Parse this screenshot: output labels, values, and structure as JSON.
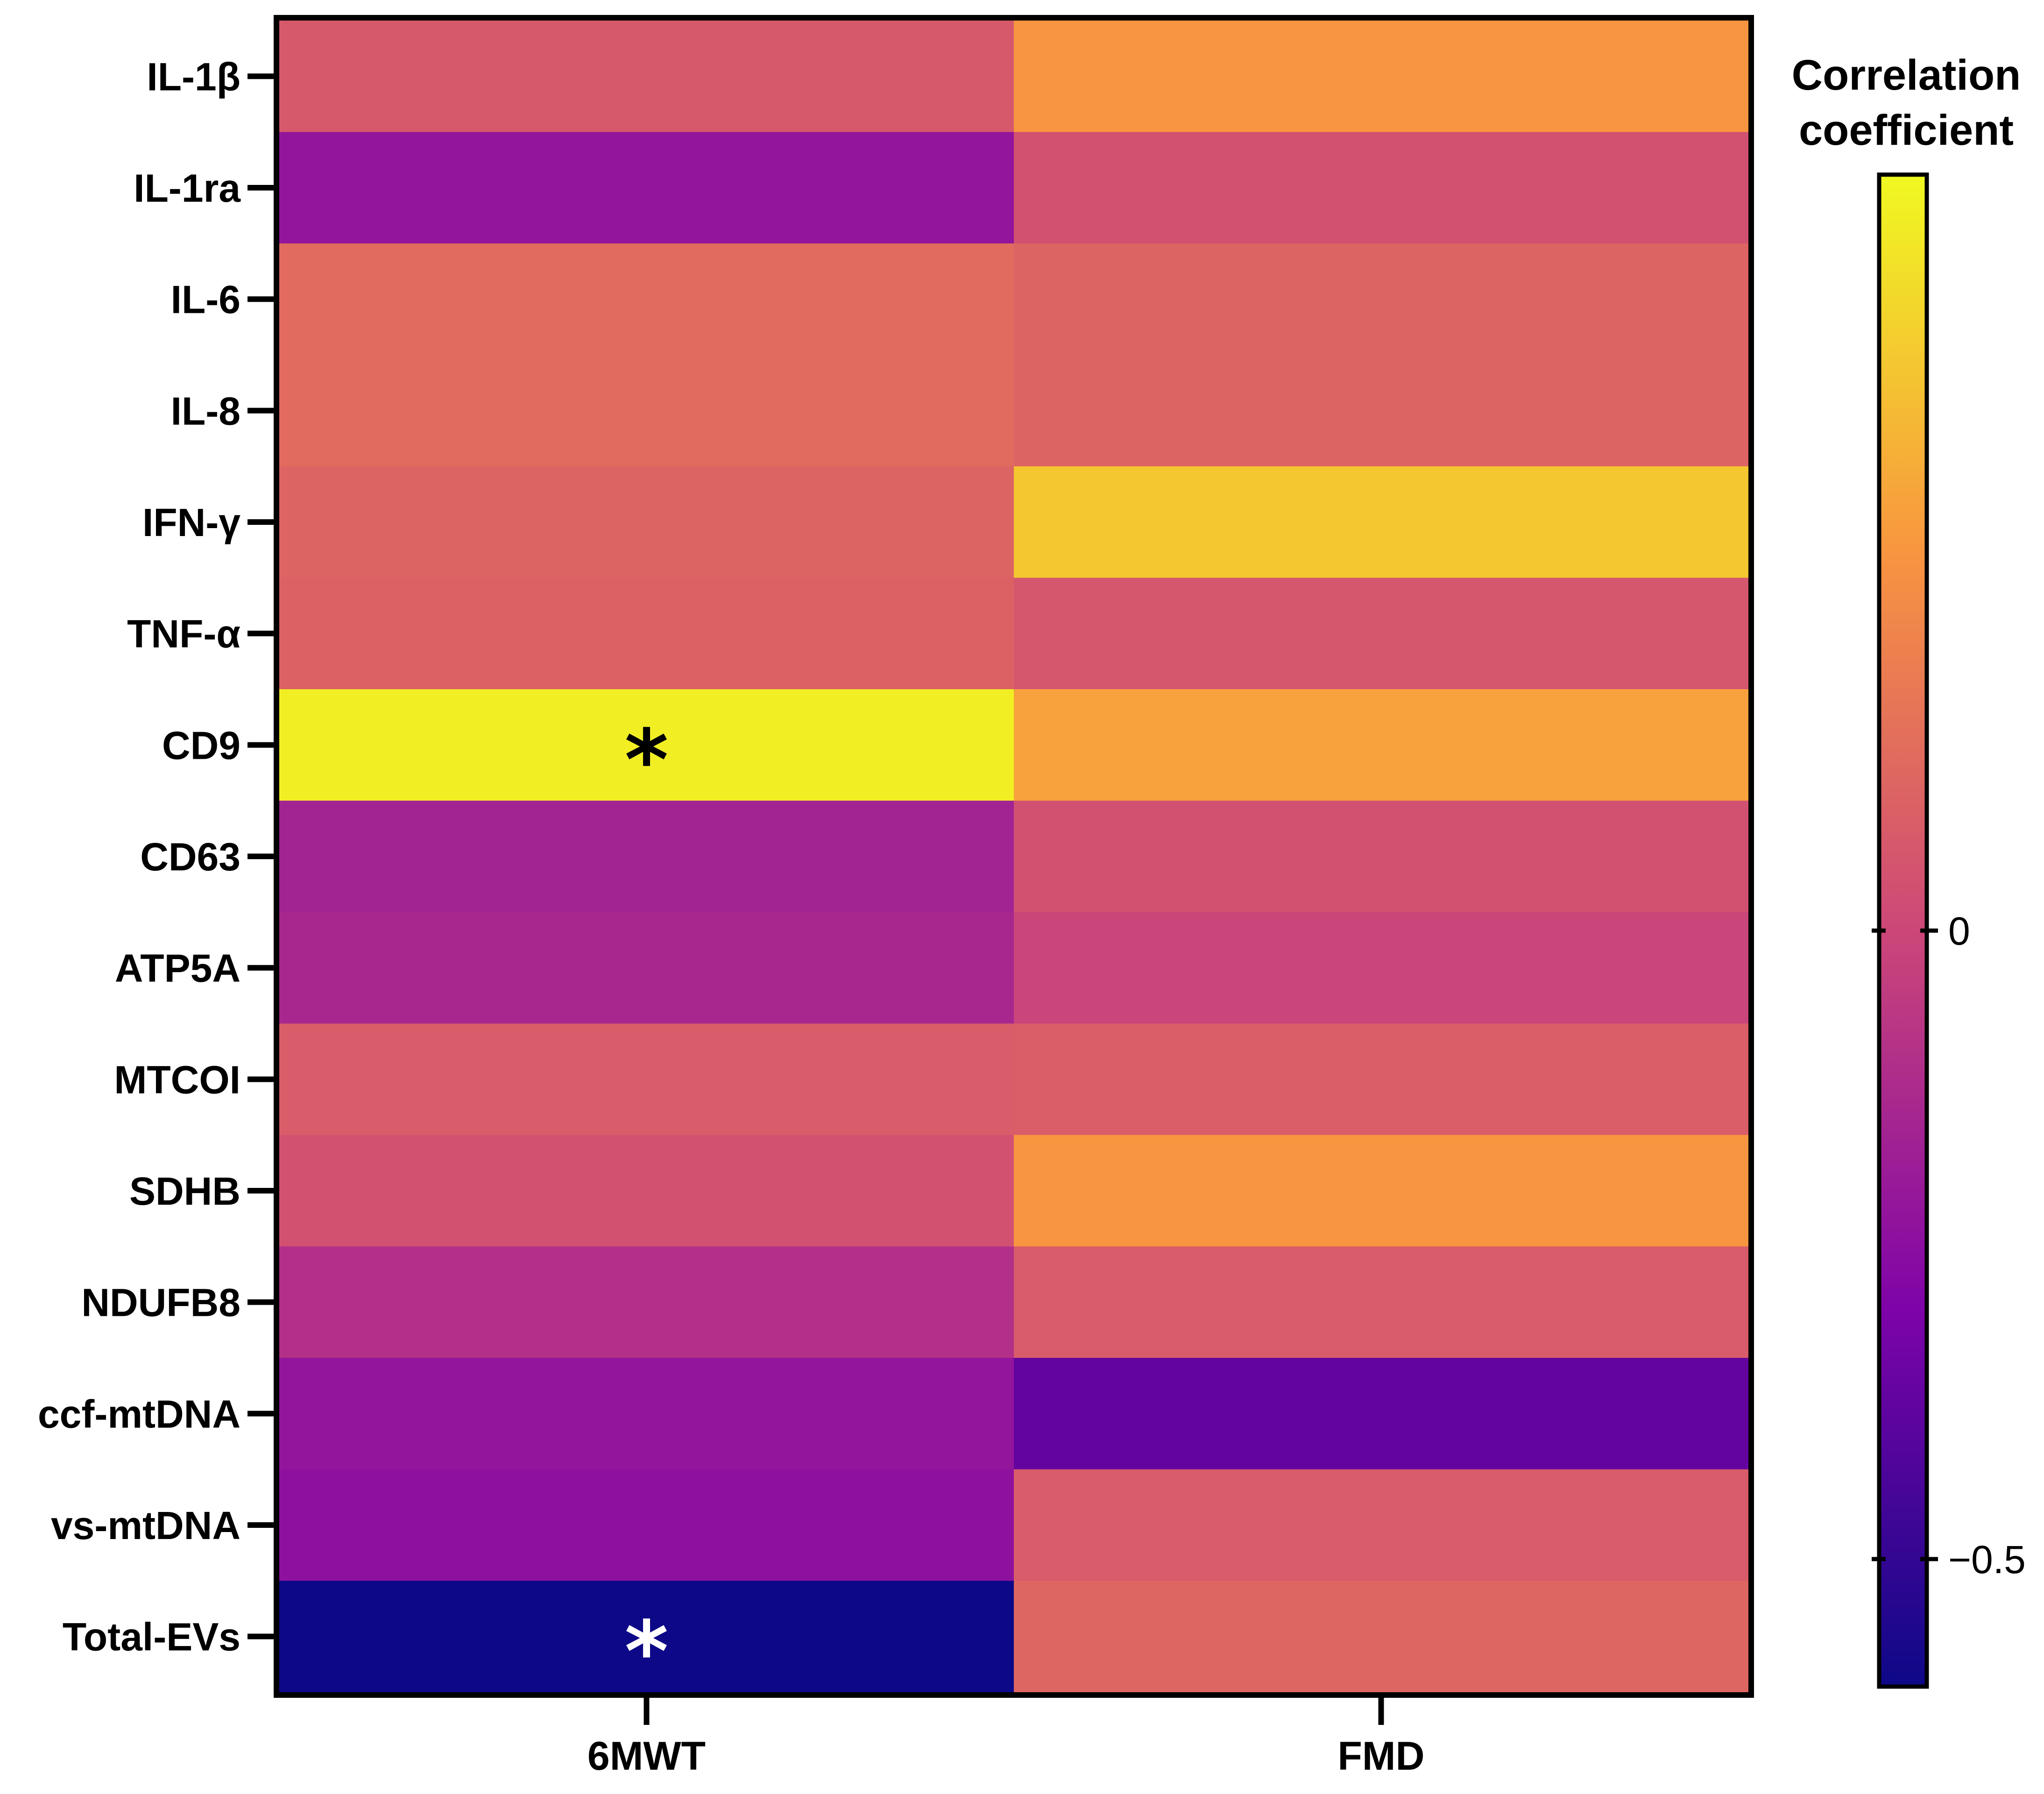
{
  "chart_data": {
    "type": "heatmap",
    "title": "",
    "xlabel": "",
    "ylabel": "",
    "columns": [
      "6MWT",
      "FMD"
    ],
    "rows": [
      "IL-1β",
      "IL-1ra",
      "IL-6",
      "IL-8",
      "IFN-γ",
      "TNF-α",
      "CD9",
      "CD63",
      "ATP5A",
      "MTCOI",
      "SDHB",
      "NDUFB8",
      "ccf-mtDNA",
      "vs-mtDNA",
      "Total-EVs"
    ],
    "values": [
      [
        0.07,
        0.3
      ],
      [
        -0.22,
        0.04
      ],
      [
        0.14,
        0.11
      ],
      [
        0.14,
        0.11
      ],
      [
        0.11,
        0.45
      ],
      [
        0.1,
        0.06
      ],
      [
        0.57,
        0.34
      ],
      [
        -0.16,
        0.04
      ],
      [
        -0.14,
        -0.01
      ],
      [
        0.08,
        0.09
      ],
      [
        0.04,
        0.3
      ],
      [
        -0.1,
        0.08
      ],
      [
        -0.22,
        -0.37
      ],
      [
        -0.24,
        0.08
      ],
      [
        -0.6,
        0.12
      ]
    ],
    "significance": [
      [
        false,
        false
      ],
      [
        false,
        false
      ],
      [
        false,
        false
      ],
      [
        false,
        false
      ],
      [
        false,
        false
      ],
      [
        false,
        false
      ],
      [
        true,
        false
      ],
      [
        false,
        false
      ],
      [
        false,
        false
      ],
      [
        false,
        false
      ],
      [
        false,
        false
      ],
      [
        false,
        false
      ],
      [
        false,
        false
      ],
      [
        false,
        false
      ],
      [
        true,
        false
      ]
    ],
    "significance_marker": "*",
    "colorbar": {
      "title_line1": "Correlation",
      "title_line2": "coefficient",
      "range": [
        -0.6,
        0.6
      ],
      "ticks": [
        0,
        -0.5
      ],
      "tick_labels": [
        "0",
        "−0.5"
      ],
      "colormap": "plasma",
      "colormap_stops": [
        "#0d0887",
        "#7e03a8",
        "#cc4778",
        "#f89540",
        "#f0f921"
      ]
    }
  }
}
